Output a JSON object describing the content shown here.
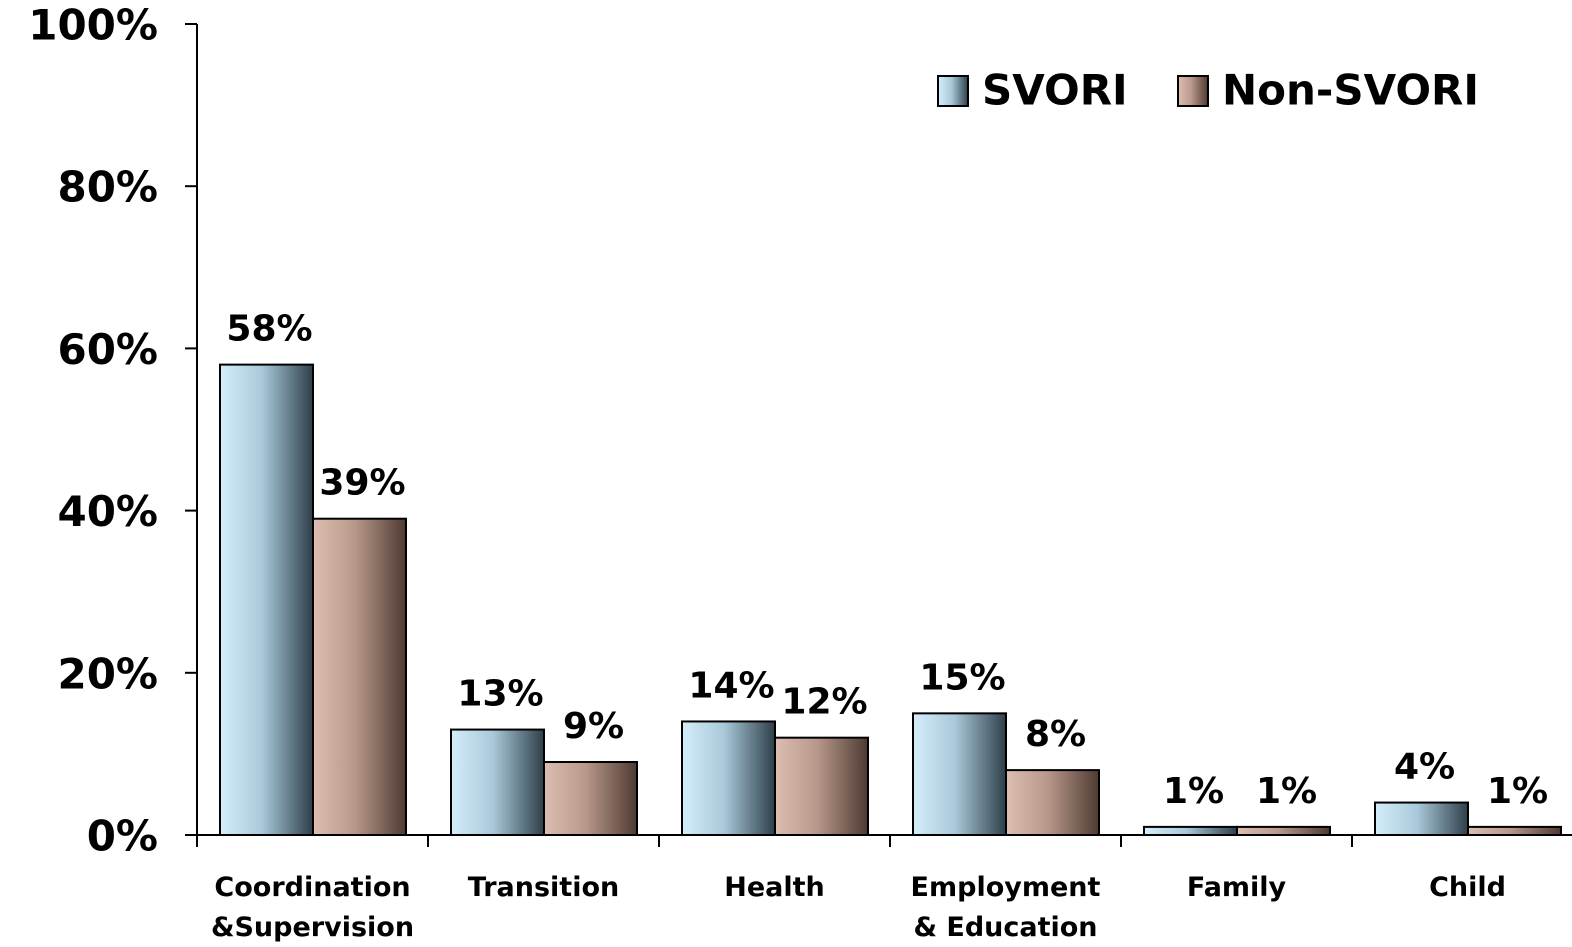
{
  "chart_data": {
    "type": "bar",
    "categories": [
      "Coordination\n&Supervision",
      "Transition",
      "Health",
      "Employment\n& Education",
      "Family",
      "Child"
    ],
    "series": [
      {
        "name": "SVORI",
        "color": "#bfe3f5",
        "values": [
          58,
          13,
          14,
          15,
          1,
          4
        ],
        "value_labels": [
          "58%",
          "13%",
          "14%",
          "15%",
          "1%",
          "4%"
        ]
      },
      {
        "name": "Non-SVORI",
        "color": "#c9a99b",
        "values": [
          39,
          9,
          12,
          8,
          1,
          1
        ],
        "value_labels": [
          "39%",
          "9%",
          "12%",
          "8%",
          "1%",
          "1%"
        ]
      }
    ],
    "ylim": [
      0,
      100
    ],
    "yticks": [
      {
        "value": 0,
        "label": "0%"
      },
      {
        "value": 20,
        "label": "20%"
      },
      {
        "value": 40,
        "label": "40%"
      },
      {
        "value": 60,
        "label": "60%"
      },
      {
        "value": 80,
        "label": "80%"
      },
      {
        "value": 100,
        "label": "100%"
      }
    ],
    "legend": "top-right"
  }
}
